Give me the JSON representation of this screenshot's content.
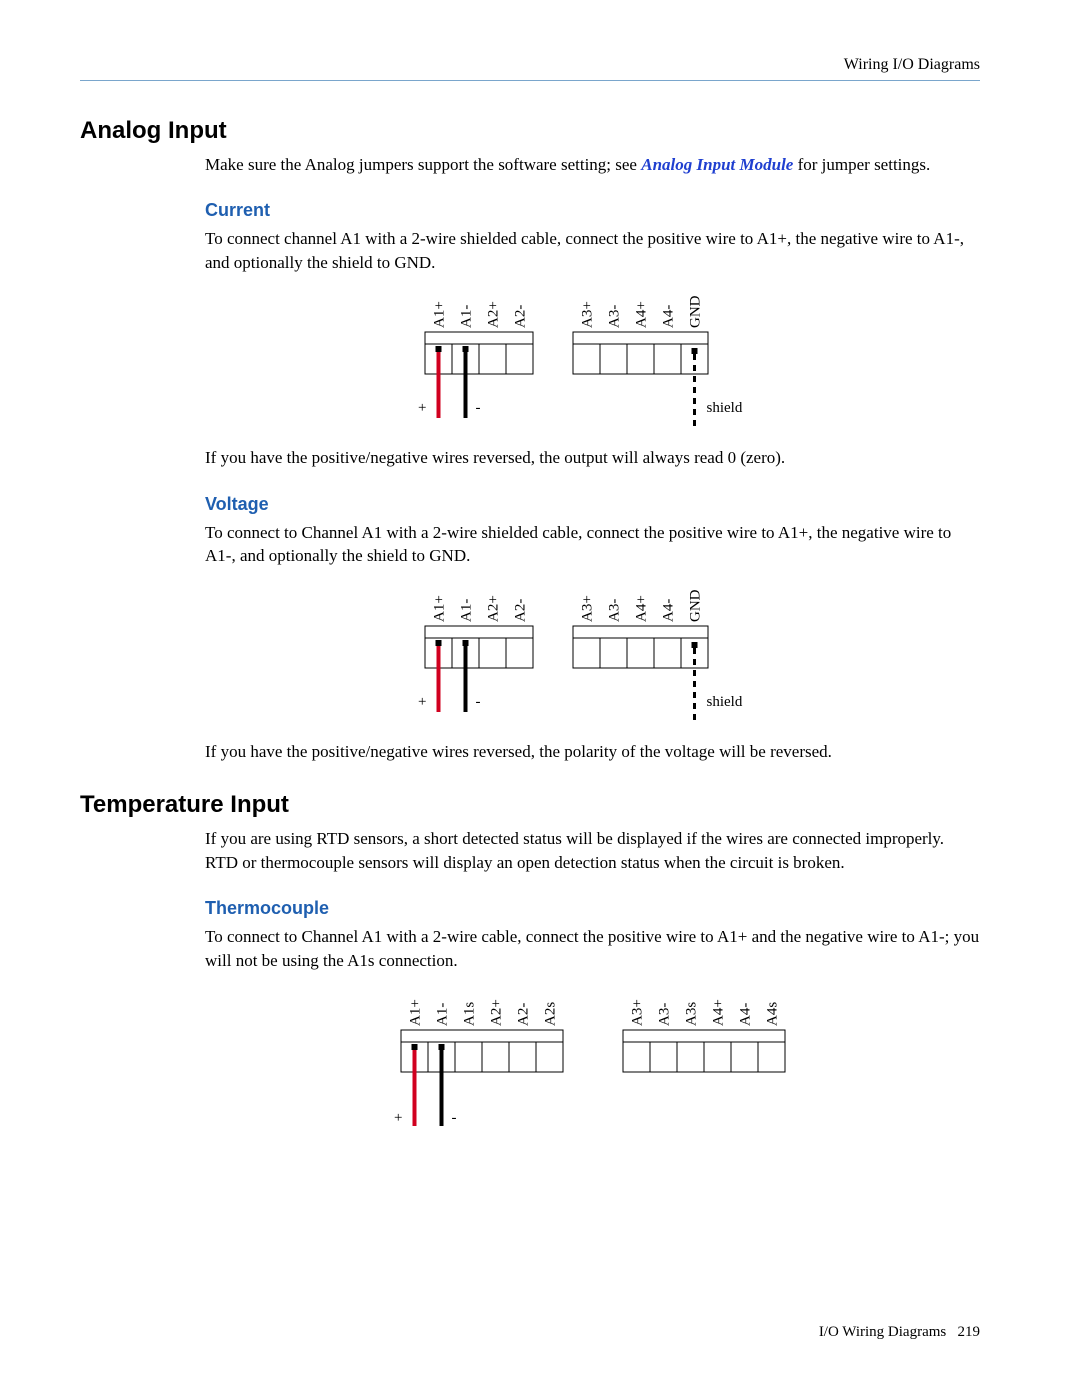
{
  "header": {
    "right": "Wiring I/O Diagrams"
  },
  "sections": {
    "analog": {
      "title": "Analog Input",
      "intro_a": "Make sure the Analog jumpers support the software setting; see ",
      "intro_link": "Analog Input Module",
      "intro_b": "  for jumper settings.",
      "current": {
        "heading": "Current",
        "para": "To connect channel A1 with a 2-wire shielded cable, connect the positive wire to A1+, the negative wire to A1-, and optionally the shield to GND.",
        "note": "If you have the positive/negative wires reversed, the output will always read 0 (zero)."
      },
      "voltage": {
        "heading": "Voltage",
        "para": "To connect to Channel A1 with a 2-wire shielded cable, connect the positive wire to A1+, the negative wire to A1-, and optionally the shield to GND.",
        "note": "If you have the positive/negative wires reversed, the polarity of the voltage will be reversed."
      }
    },
    "temperature": {
      "title": "Temperature Input",
      "intro": "If you are using RTD sensors, a short detected status will be displayed if the wires are connected improperly. RTD or thermocouple sensors will display an open detection status when the circuit is broken.",
      "thermocouple": {
        "heading": "Thermocouple",
        "para": "To connect to Channel A1 with a 2-wire cable, connect the positive wire to A1+ and the negative wire to A1-; you will not be using the A1s connection."
      }
    }
  },
  "diagrams": {
    "analog4": {
      "block1_labels": [
        "A1+",
        "A1-",
        "A2+",
        "A2-"
      ],
      "block2_labels": [
        "A3+",
        "A3-",
        "A4+",
        "A4-",
        "GND"
      ],
      "pos_label": "+",
      "neg_label": "-",
      "shield_label": "shield",
      "colors": {
        "stroke": "#000000",
        "pos_wire": "#d1001f",
        "neg_wire": "#000000",
        "shield_wire": "#000000"
      },
      "terminal_w": 27,
      "terminal_h": 30,
      "bus_h": 12,
      "gap": 40,
      "wire_len": 44
    },
    "temp6": {
      "block1_labels": [
        "A1+",
        "A1-",
        "A1s",
        "A2+",
        "A2-",
        "A2s"
      ],
      "block2_labels": [
        "A3+",
        "A3-",
        "A3s",
        "A4+",
        "A4-",
        "A4s"
      ],
      "pos_label": "+",
      "neg_label": "-",
      "colors": {
        "stroke": "#000000",
        "pos_wire": "#d1001f",
        "neg_wire": "#000000"
      },
      "terminal_w": 27,
      "terminal_h": 30,
      "bus_h": 12,
      "gap": 60,
      "wire_len": 54
    }
  },
  "footer": {
    "text": "I/O Wiring Diagrams",
    "page": "219"
  }
}
